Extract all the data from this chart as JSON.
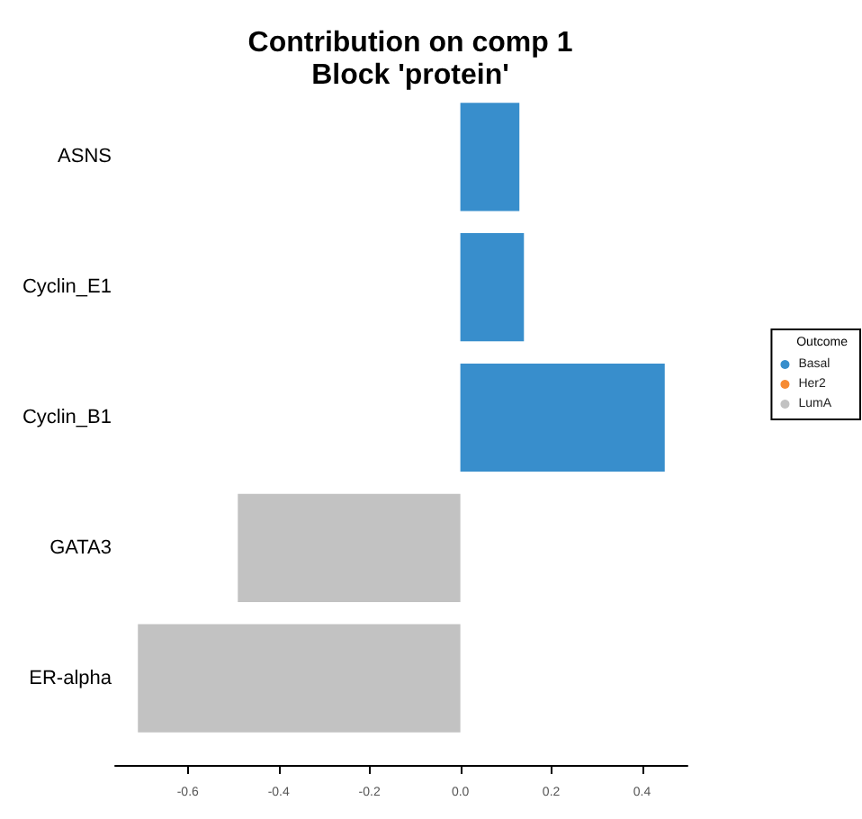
{
  "chart_data": {
    "type": "bar",
    "orientation": "horizontal",
    "title": "Contribution on comp 1\nBlock 'protein'",
    "legend_title": "Outcome",
    "categories": [
      "ASNS",
      "Cyclin_E1",
      "Cyclin_B1",
      "GATA3",
      "ER-alpha"
    ],
    "series": [
      {
        "name": "Basal",
        "color": "#388ecc",
        "values": [
          0.13,
          0.14,
          0.45,
          null,
          null
        ]
      },
      {
        "name": "Her2",
        "color": "#f68b33",
        "values": [
          null,
          null,
          null,
          null,
          null
        ]
      },
      {
        "name": "LumA",
        "color": "#c2c2c2",
        "values": [
          null,
          null,
          null,
          -0.49,
          -0.71
        ]
      }
    ],
    "xlim": [
      -0.76,
      0.5
    ],
    "xticks": [
      -0.6,
      -0.4,
      -0.2,
      {
        "value": 0,
        "label": "0.0"
      },
      0.2,
      0.4
    ],
    "grid": false,
    "legend": "right"
  }
}
